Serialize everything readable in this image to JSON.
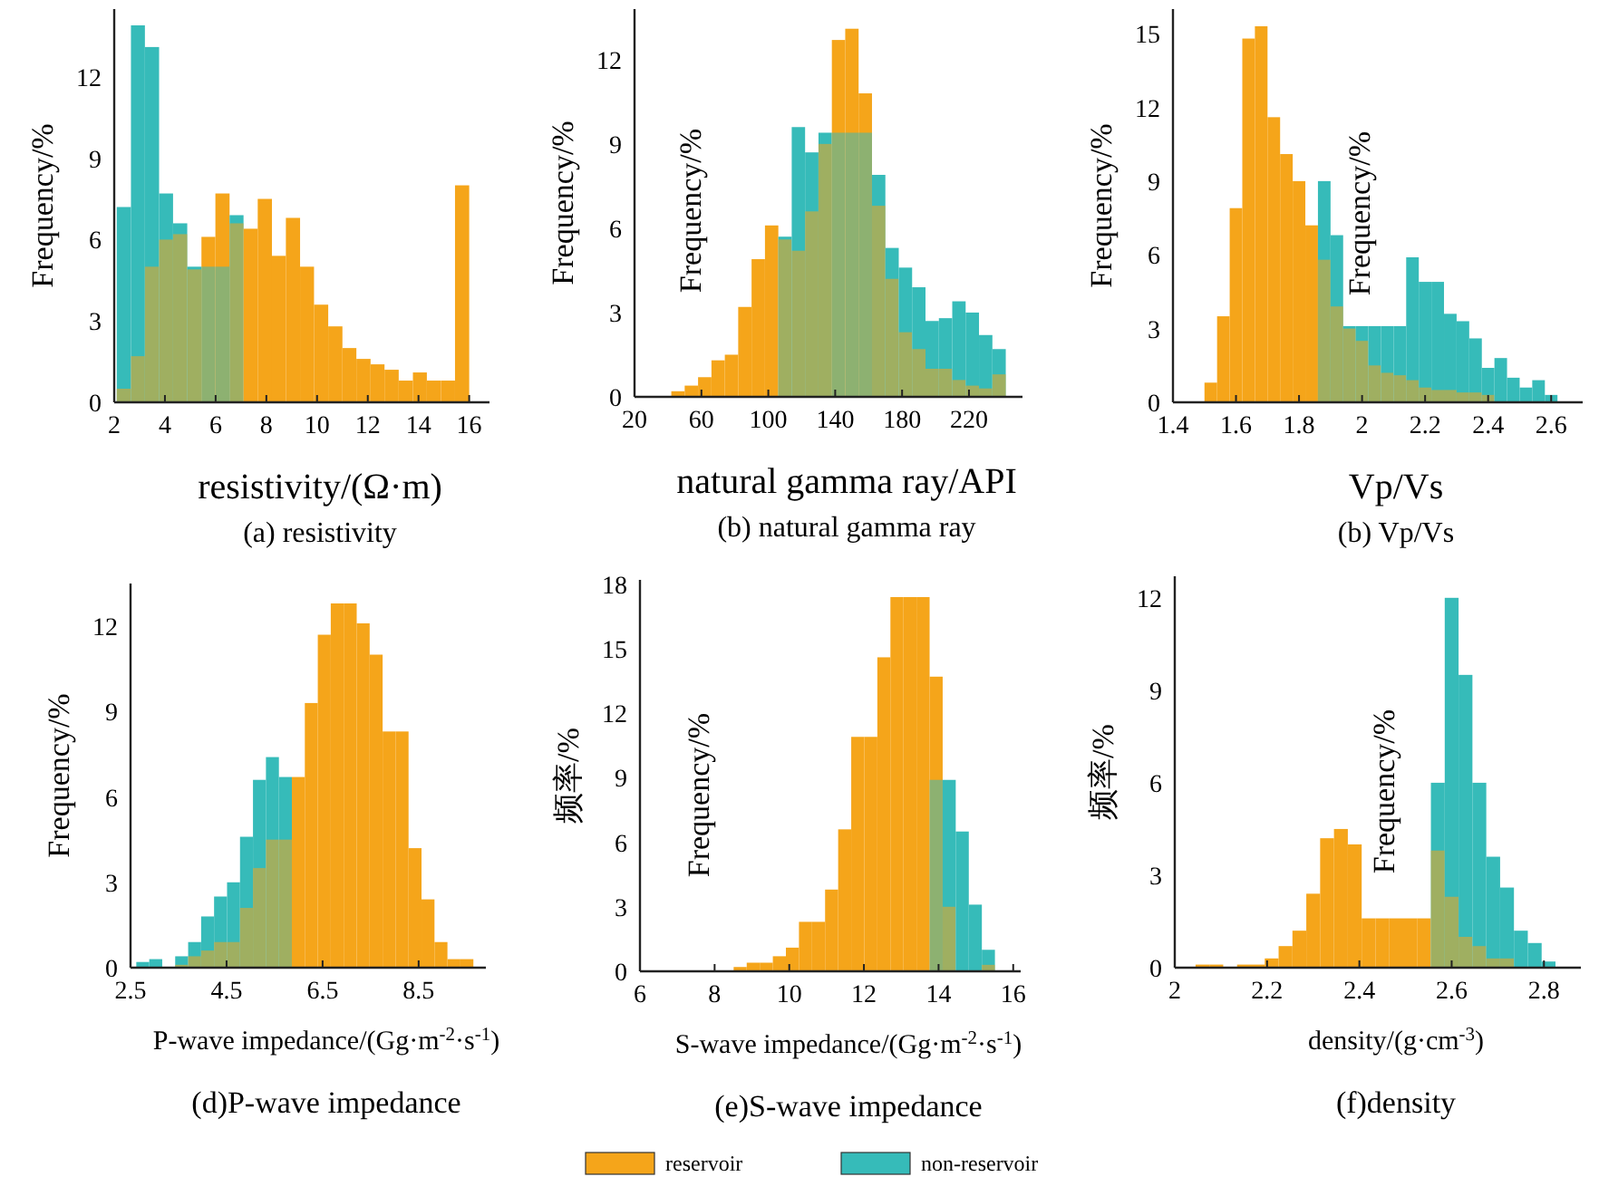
{
  "chart_data": [
    {
      "type": "histogram",
      "title": "(a) resistivity",
      "xlabel": "resistivity/(Ω·m)",
      "ylabel": "Frequency/%",
      "xlim": [
        2,
        16.8
      ],
      "xticks": [
        2,
        4,
        6,
        8,
        10,
        12,
        14,
        16
      ],
      "ylim": [
        0,
        14.5
      ],
      "yticks": [
        0,
        3,
        6,
        9,
        12
      ],
      "legend": false,
      "bins": [
        2.1,
        2.66,
        3.21,
        3.77,
        4.32,
        4.88,
        5.44,
        5.99,
        6.55,
        7.1,
        7.66,
        8.22,
        8.77,
        9.33,
        9.88,
        10.44,
        11,
        11.55,
        12.11,
        12.66,
        13.22,
        13.78,
        14.33,
        14.89,
        15.44,
        16
      ],
      "series": [
        {
          "color": "#f5a51a",
          "values": [
            0.5,
            1.7,
            5.0,
            6.0,
            6.2,
            4.9,
            6.1,
            7.7,
            6.6,
            6.4,
            7.5,
            5.4,
            6.8,
            5.0,
            3.6,
            2.8,
            2.0,
            1.6,
            1.4,
            1.2,
            0.8,
            1.1,
            0.8,
            0.8,
            8.0
          ]
        },
        {
          "color": "#36bbb9",
          "values": [
            7.2,
            13.9,
            13.1,
            7.7,
            6.6,
            5.0,
            5.0,
            5.0,
            6.9,
            null,
            null,
            null,
            null,
            null,
            null,
            null,
            null,
            null,
            null,
            null,
            null,
            null,
            null,
            null,
            null
          ]
        }
      ]
    },
    {
      "type": "histogram",
      "title": "(b) natural gamma ray",
      "xlabel": "natural gamma ray/API",
      "ylabel": "Frequency/%",
      "annotations": [
        "Frequency/%"
      ],
      "xlim": [
        20,
        252
      ],
      "xticks": [
        20,
        60,
        100,
        140,
        180,
        220
      ],
      "ylim": [
        0,
        13.8
      ],
      "yticks": [
        0,
        3,
        6,
        9,
        12
      ],
      "legend": false,
      "bins": [
        42,
        50,
        58,
        66,
        74,
        82,
        90,
        98,
        106,
        114,
        122,
        130,
        138,
        146,
        154,
        162,
        170,
        178,
        186,
        194,
        202,
        210,
        218,
        226,
        234,
        242
      ],
      "series": [
        {
          "color": "#f5a51a",
          "values": [
            0.2,
            0.4,
            0.7,
            1.3,
            1.5,
            3.2,
            4.9,
            6.1,
            5.6,
            5.2,
            6.6,
            9.0,
            12.7,
            13.1,
            10.8,
            6.8,
            4.2,
            2.3,
            1.7,
            1.0,
            1.0,
            0.6,
            0.4,
            0.3,
            0.8
          ]
        },
        {
          "color": "#36bbb9",
          "values": [
            null,
            null,
            null,
            null,
            null,
            null,
            null,
            null,
            5.7,
            9.6,
            8.7,
            9.4,
            9.4,
            9.4,
            9.4,
            7.9,
            5.3,
            4.6,
            3.9,
            2.7,
            2.8,
            3.4,
            3.0,
            2.2,
            1.7
          ]
        }
      ]
    },
    {
      "type": "histogram",
      "title": "(b) Vp/Vs",
      "xlabel": "Vp/Vs",
      "ylabel": "Frequency/%",
      "annotations": [
        "Frequency/%"
      ],
      "xlim": [
        1.4,
        2.7
      ],
      "xticks": [
        1.4,
        1.6,
        1.8,
        2,
        2.2,
        2.4,
        2.6
      ],
      "ylim": [
        0,
        16
      ],
      "yticks": [
        0,
        3,
        6,
        9,
        12,
        15
      ],
      "legend": false,
      "bins": [
        1.5,
        1.54,
        1.58,
        1.62,
        1.66,
        1.7,
        1.74,
        1.78,
        1.82,
        1.86,
        1.9,
        1.94,
        1.98,
        2.02,
        2.06,
        2.1,
        2.14,
        2.18,
        2.22,
        2.26,
        2.3,
        2.34,
        2.38,
        2.42,
        2.46,
        2.5,
        2.54,
        2.58,
        2.62
      ],
      "series": [
        {
          "color": "#f5a51a",
          "values": [
            0.8,
            3.5,
            7.9,
            14.8,
            15.3,
            11.6,
            10.1,
            9.0,
            7.2,
            5.8,
            3.9,
            3.0,
            2.5,
            1.5,
            1.2,
            1.1,
            0.9,
            0.6,
            0.5,
            0.5,
            0.4,
            0.4,
            0.3,
            null,
            null,
            null,
            null,
            null
          ]
        },
        {
          "color": "#36bbb9",
          "values": [
            null,
            null,
            null,
            null,
            null,
            null,
            null,
            null,
            null,
            9.0,
            6.8,
            3.1,
            3.1,
            3.1,
            3.1,
            3.1,
            5.9,
            4.9,
            4.9,
            3.6,
            3.3,
            2.6,
            1.4,
            1.8,
            1.0,
            0.6,
            0.9,
            0.3
          ]
        }
      ]
    },
    {
      "type": "histogram",
      "title": "(d)P-wave impedance",
      "xlabel": "P-wave impedance/(Gg·m$^{-2}$·s$^{-1}$)",
      "ylabel": "Frequency/%",
      "xlim": [
        2.5,
        9.9
      ],
      "xticks": [
        2.5,
        4.5,
        6.5,
        8.5
      ],
      "ylim": [
        0,
        13.5
      ],
      "yticks": [
        0,
        3,
        6,
        9,
        12
      ],
      "legend": false,
      "bins": [
        2.62,
        2.89,
        3.16,
        3.43,
        3.7,
        3.97,
        4.24,
        4.51,
        4.78,
        5.05,
        5.32,
        5.59,
        5.86,
        6.13,
        6.4,
        6.67,
        6.94,
        7.21,
        7.48,
        7.75,
        8.02,
        8.29,
        8.56,
        8.83,
        9.1,
        9.37,
        9.64
      ],
      "series": [
        {
          "color": "#f5a51a",
          "values": [
            null,
            null,
            null,
            0.1,
            0.4,
            0.6,
            0.9,
            0.9,
            2.1,
            3.5,
            4.5,
            4.5,
            6.7,
            9.3,
            11.7,
            12.8,
            12.8,
            12.1,
            11.0,
            8.3,
            8.3,
            4.2,
            2.4,
            0.9,
            0.3,
            0.3
          ]
        },
        {
          "color": "#36bbb9",
          "values": [
            0.2,
            0.3,
            null,
            0.4,
            0.9,
            1.8,
            2.5,
            3.0,
            4.6,
            6.6,
            7.4,
            6.7,
            null,
            null,
            null,
            null,
            null,
            null,
            null,
            null,
            null,
            null,
            null,
            null,
            null,
            null
          ]
        }
      ]
    },
    {
      "type": "histogram",
      "title": "(e)S-wave impedance",
      "xlabel": "S-wave impedance/(Gg·m$^{-2}$·s$^{-1}$)",
      "ylabel": "频率/%",
      "annotations": [
        "Frequency/%"
      ],
      "xlim": [
        6,
        16.2
      ],
      "xticks": [
        6,
        8,
        10,
        12,
        14,
        16
      ],
      "ylim": [
        0,
        18.2
      ],
      "yticks": [
        0,
        3,
        6,
        9,
        12,
        15,
        18
      ],
      "legend": "bottom",
      "bins": [
        8.51,
        8.86,
        9.21,
        9.56,
        9.91,
        10.26,
        10.61,
        10.96,
        11.31,
        11.66,
        12.01,
        12.36,
        12.71,
        13.06,
        13.41,
        13.76,
        14.11,
        14.46,
        14.81,
        15.16,
        15.51
      ],
      "series": [
        {
          "name": "reservoir",
          "color": "#f5a51a",
          "values": [
            0.2,
            0.4,
            0.4,
            0.7,
            1.1,
            2.3,
            2.3,
            3.8,
            6.6,
            10.9,
            10.9,
            14.6,
            17.4,
            17.4,
            17.4,
            13.7,
            3.0,
            null,
            null,
            0.3
          ]
        },
        {
          "name": "non-reservoir",
          "color": "#36bbb9",
          "values": [
            null,
            null,
            null,
            null,
            null,
            null,
            null,
            null,
            null,
            null,
            null,
            null,
            null,
            null,
            null,
            8.9,
            8.9,
            6.5,
            3.1,
            1.0
          ]
        }
      ]
    },
    {
      "type": "histogram",
      "title": "(f)density",
      "xlabel": "density/(g·cm$^{-3}$)",
      "ylabel": "频率/%",
      "annotations": [
        "Frequency/%"
      ],
      "xlim": [
        2,
        2.88
      ],
      "xticks": [
        2,
        2.2,
        2.4,
        2.6,
        2.8
      ],
      "ylim": [
        0,
        12.7
      ],
      "yticks": [
        0,
        3,
        6,
        9,
        12
      ],
      "legend": false,
      "bins": [
        2.045,
        2.075,
        2.105,
        2.135,
        2.165,
        2.195,
        2.225,
        2.255,
        2.285,
        2.315,
        2.345,
        2.375,
        2.405,
        2.435,
        2.465,
        2.495,
        2.525,
        2.555,
        2.585,
        2.615,
        2.645,
        2.675,
        2.705,
        2.735,
        2.765,
        2.795,
        2.825
      ],
      "series": [
        {
          "color": "#f5a51a",
          "values": [
            0.1,
            0.1,
            null,
            0.1,
            0.1,
            0.3,
            0.7,
            1.2,
            2.4,
            4.2,
            4.5,
            4.0,
            1.6,
            1.6,
            1.6,
            1.6,
            1.6,
            3.8,
            2.3,
            1.0,
            0.7,
            0.3,
            0.3,
            null,
            null,
            null
          ]
        },
        {
          "color": "#36bbb9",
          "values": [
            null,
            null,
            null,
            null,
            null,
            null,
            null,
            null,
            null,
            null,
            null,
            null,
            null,
            null,
            null,
            null,
            null,
            6.0,
            12.0,
            9.5,
            6.0,
            3.6,
            2.6,
            1.2,
            0.8,
            0.2
          ]
        }
      ]
    }
  ]
}
